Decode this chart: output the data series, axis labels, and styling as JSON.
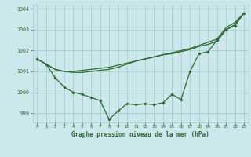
{
  "bg_color": "#cce8ec",
  "grid_color": "#99cccc",
  "line_color": "#2d6a2d",
  "marker_color": "#2d6a2d",
  "xlabel": "Graphe pression niveau de la mer (hPa)",
  "xlim": [
    -0.5,
    23.5
  ],
  "ylim": [
    998.55,
    1004.2
  ],
  "yticks": [
    999,
    1000,
    1001,
    1002,
    1003,
    1004
  ],
  "xticks": [
    0,
    1,
    2,
    3,
    4,
    5,
    6,
    7,
    8,
    9,
    10,
    11,
    12,
    13,
    14,
    15,
    16,
    17,
    18,
    19,
    20,
    21,
    22,
    23
  ],
  "series1": [
    1001.6,
    1001.35,
    1000.7,
    1000.25,
    1000.0,
    999.9,
    999.75,
    999.6,
    998.7,
    999.1,
    999.45,
    999.4,
    999.45,
    999.4,
    999.5,
    999.9,
    999.65,
    1001.0,
    1001.85,
    1001.95,
    1002.5,
    1003.0,
    1003.2,
    1003.8
  ],
  "series2": [
    1001.6,
    1001.35,
    1001.1,
    1001.0,
    1001.0,
    1001.05,
    1001.1,
    1001.15,
    1001.2,
    1001.3,
    1001.4,
    1001.5,
    1001.6,
    1001.7,
    1001.8,
    1001.85,
    1001.95,
    1002.05,
    1002.2,
    1002.3,
    1002.45,
    1003.0,
    1003.25,
    1003.8
  ],
  "series3": [
    1001.6,
    1001.35,
    1001.1,
    1001.0,
    1000.95,
    1000.95,
    1001.0,
    1001.05,
    1001.1,
    1001.2,
    1001.35,
    1001.5,
    1001.6,
    1001.7,
    1001.8,
    1001.9,
    1002.0,
    1002.1,
    1002.25,
    1002.4,
    1002.55,
    1003.1,
    1003.35,
    1003.8
  ]
}
